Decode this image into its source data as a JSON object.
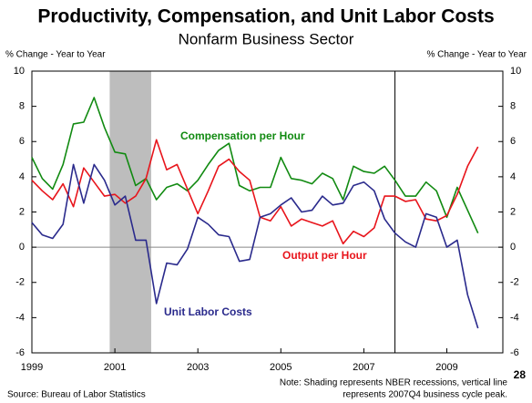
{
  "chart_data": {
    "type": "line",
    "title": "Productivity, Compensation, and Unit Labor Costs",
    "subtitle": "Nonfarm Business Sector",
    "y_axis_label": "% Change - Year to Year",
    "y2_axis_label": "% Change - Year to Year",
    "x": [
      1999,
      1999.25,
      1999.5,
      1999.75,
      2000,
      2000.25,
      2000.5,
      2000.75,
      2001,
      2001.25,
      2001.5,
      2001.75,
      2002,
      2002.25,
      2002.5,
      2002.75,
      2003,
      2003.25,
      2003.5,
      2003.75,
      2004,
      2004.25,
      2004.5,
      2004.75,
      2005,
      2005.25,
      2005.5,
      2005.75,
      2006,
      2006.25,
      2006.5,
      2006.75,
      2007,
      2007.25,
      2007.5,
      2007.75,
      2008,
      2008.25,
      2008.5,
      2008.75,
      2009,
      2009.25,
      2009.5,
      2009.75
    ],
    "series": [
      {
        "name": "Compensation per Hour",
        "color": "#118a11",
        "values": [
          5.1,
          3.9,
          3.3,
          4.7,
          7.0,
          7.1,
          8.5,
          6.8,
          5.4,
          5.3,
          3.5,
          3.9,
          2.7,
          3.4,
          3.6,
          3.2,
          3.8,
          4.7,
          5.5,
          5.9,
          3.5,
          3.2,
          3.4,
          3.4,
          5.1,
          3.9,
          3.8,
          3.6,
          4.2,
          3.9,
          2.7,
          4.6,
          4.3,
          4.2,
          4.6,
          3.8,
          2.9,
          2.9,
          3.7,
          3.2,
          1.7,
          3.4,
          2.1,
          0.8
        ]
      },
      {
        "name": "Output per Hour",
        "color": "#e8141b",
        "values": [
          3.8,
          3.2,
          2.7,
          3.6,
          2.3,
          4.5,
          3.7,
          2.9,
          3.0,
          2.5,
          2.9,
          3.9,
          6.1,
          4.4,
          4.7,
          3.3,
          1.9,
          3.2,
          4.6,
          5.0,
          4.3,
          3.8,
          1.7,
          1.5,
          2.3,
          1.2,
          1.6,
          1.4,
          1.2,
          1.5,
          0.2,
          0.9,
          0.6,
          1.1,
          2.9,
          2.9,
          2.6,
          2.7,
          1.6,
          1.5,
          1.8,
          3.0,
          4.6,
          5.7
        ]
      },
      {
        "name": "Unit Labor Costs",
        "color": "#2a2a8c",
        "values": [
          1.4,
          0.7,
          0.5,
          1.3,
          4.7,
          2.5,
          4.7,
          3.8,
          2.4,
          2.9,
          0.4,
          0.4,
          -3.2,
          -0.9,
          -1.0,
          -0.1,
          1.7,
          1.3,
          0.7,
          0.6,
          -0.8,
          -0.7,
          1.7,
          1.9,
          2.4,
          2.8,
          2.0,
          2.1,
          2.9,
          2.4,
          2.5,
          3.5,
          3.7,
          3.2,
          1.6,
          0.8,
          0.3,
          0.0,
          1.9,
          1.7,
          0.0,
          0.4,
          -2.7,
          -4.6
        ]
      }
    ],
    "xlim": [
      1999,
      2010.35
    ],
    "xticks": [
      1999,
      2001,
      2003,
      2005,
      2007,
      2009
    ],
    "ylim": [
      -6,
      10
    ],
    "yticks": [
      -6,
      -4,
      -2,
      0,
      2,
      4,
      6,
      8,
      10
    ],
    "y2lim": [
      -6,
      10
    ],
    "y2ticks": [
      -6,
      -4,
      -2,
      0,
      2,
      4,
      6,
      8,
      10
    ],
    "recessions": [
      [
        2000.875,
        2001.875
      ]
    ],
    "vline": 2007.75,
    "note": [
      "Note: Shading represents NBER recessions, vertical line",
      "represents 2007Q4 business cycle peak."
    ],
    "source": "Source: Bureau of Labor Statistics",
    "page_number": "28"
  }
}
